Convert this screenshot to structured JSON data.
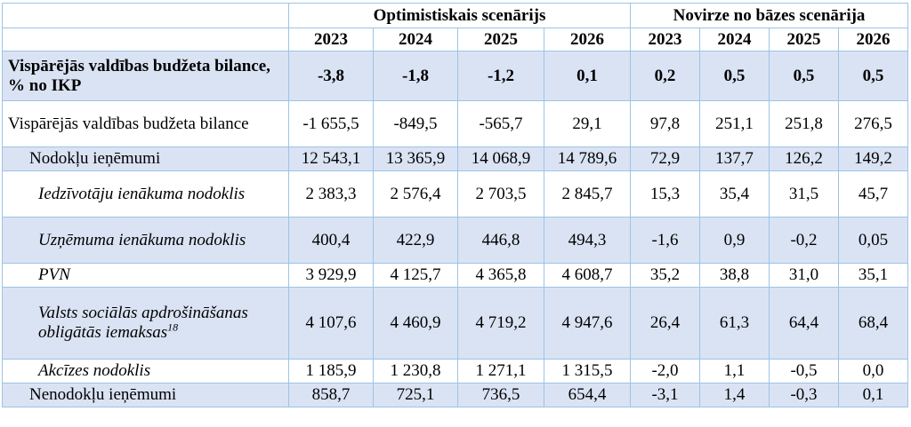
{
  "table": {
    "group_headers": [
      "Optimistiskais scenārijs",
      "Novirze no bāzes scenārija"
    ],
    "years": [
      "2023",
      "2024",
      "2025",
      "2026",
      "2023",
      "2024",
      "2025",
      "2026"
    ],
    "rows": [
      {
        "label": "Vispārējās valdības budžeta bilance, % no IKP",
        "values": [
          "-3,8",
          "-1,8",
          "-1,2",
          "0,1",
          "0,2",
          "0,5",
          "0,5",
          "0,5"
        ]
      },
      {
        "label": "Vispārējās valdības budžeta bilance",
        "values": [
          "-1 655,5",
          "-849,5",
          "-565,7",
          "29,1",
          "97,8",
          "251,1",
          "251,8",
          "276,5"
        ]
      },
      {
        "label": "Nodokļu ieņēmumi",
        "values": [
          "12 543,1",
          "13 365,9",
          "14 068,9",
          "14 789,6",
          "72,9",
          "137,7",
          "126,2",
          "149,2"
        ]
      },
      {
        "label": "Iedzīvotāju ienākuma nodoklis",
        "values": [
          "2 383,3",
          "2 576,4",
          "2 703,5",
          "2 845,7",
          "15,3",
          "35,4",
          "31,5",
          "45,7"
        ]
      },
      {
        "label": "Uzņēmuma ienākuma nodoklis",
        "values": [
          "400,4",
          "422,9",
          "446,8",
          "494,3",
          "-1,6",
          "0,9",
          "-0,2",
          "0,05"
        ]
      },
      {
        "label": "PVN",
        "values": [
          "3 929,9",
          "4 125,7",
          "4 365,8",
          "4 608,7",
          "35,2",
          "38,8",
          "31,0",
          "35,1"
        ]
      },
      {
        "label": "Valsts sociālās apdrošināšanas obligātās iemaksas",
        "footnote": "18",
        "values": [
          "4 107,6",
          "4 460,9",
          "4 719,2",
          "4 947,6",
          "26,4",
          "61,3",
          "64,4",
          "68,4"
        ]
      },
      {
        "label": "Akcīzes nodoklis",
        "values": [
          "1 185,9",
          "1 230,8",
          "1 271,1",
          "1 315,5",
          "-2,0",
          "1,1",
          "-0,5",
          "0,0"
        ]
      },
      {
        "label": "Nenodokļu ieņēmumi",
        "values": [
          "858,7",
          "725,1",
          "736,5",
          "654,4",
          "-3,1",
          "1,4",
          "-0,3",
          "0,1"
        ]
      }
    ]
  }
}
